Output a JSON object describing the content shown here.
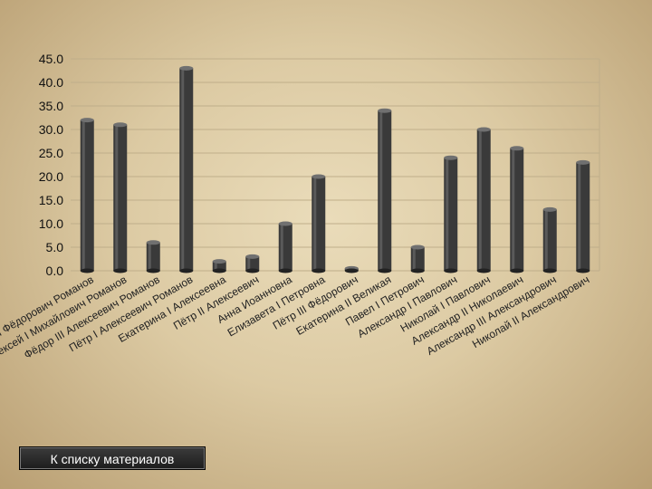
{
  "chart_data": {
    "type": "bar",
    "categories": [
      "Михаил Фёдорович Романов",
      "Алексей I Михайлович Романов",
      "Фёдор III Алексеевич Романов",
      "Пётр I Алексеевич Романов",
      "Екатерина I Алексеевна",
      "Пётр II Алексеевич",
      "Анна Иоанновна",
      "Елизавета I Петровна",
      "Пётр III Фёдорович",
      "Екатерина II Великая",
      "Павел I Петрович",
      "Александр I Павлович",
      "Николай I Павлович",
      "Александр II Николаевич",
      "Александр III Александрович",
      "Николай II Александрович"
    ],
    "values": [
      32,
      31,
      6,
      43,
      2,
      3,
      10,
      20,
      0.5,
      34,
      5,
      24,
      30,
      26,
      13,
      23
    ],
    "ylim": [
      0,
      45
    ],
    "yticks": [
      "0.0",
      "5.0",
      "10.0",
      "15.0",
      "20.0",
      "25.0",
      "30.0",
      "35.0",
      "40.0",
      "45.0"
    ],
    "title": "",
    "xlabel": "",
    "ylabel": "",
    "grid": true,
    "bar_color": "#3a3a3a"
  },
  "footer": {
    "back_button_label": "К списку материалов"
  }
}
